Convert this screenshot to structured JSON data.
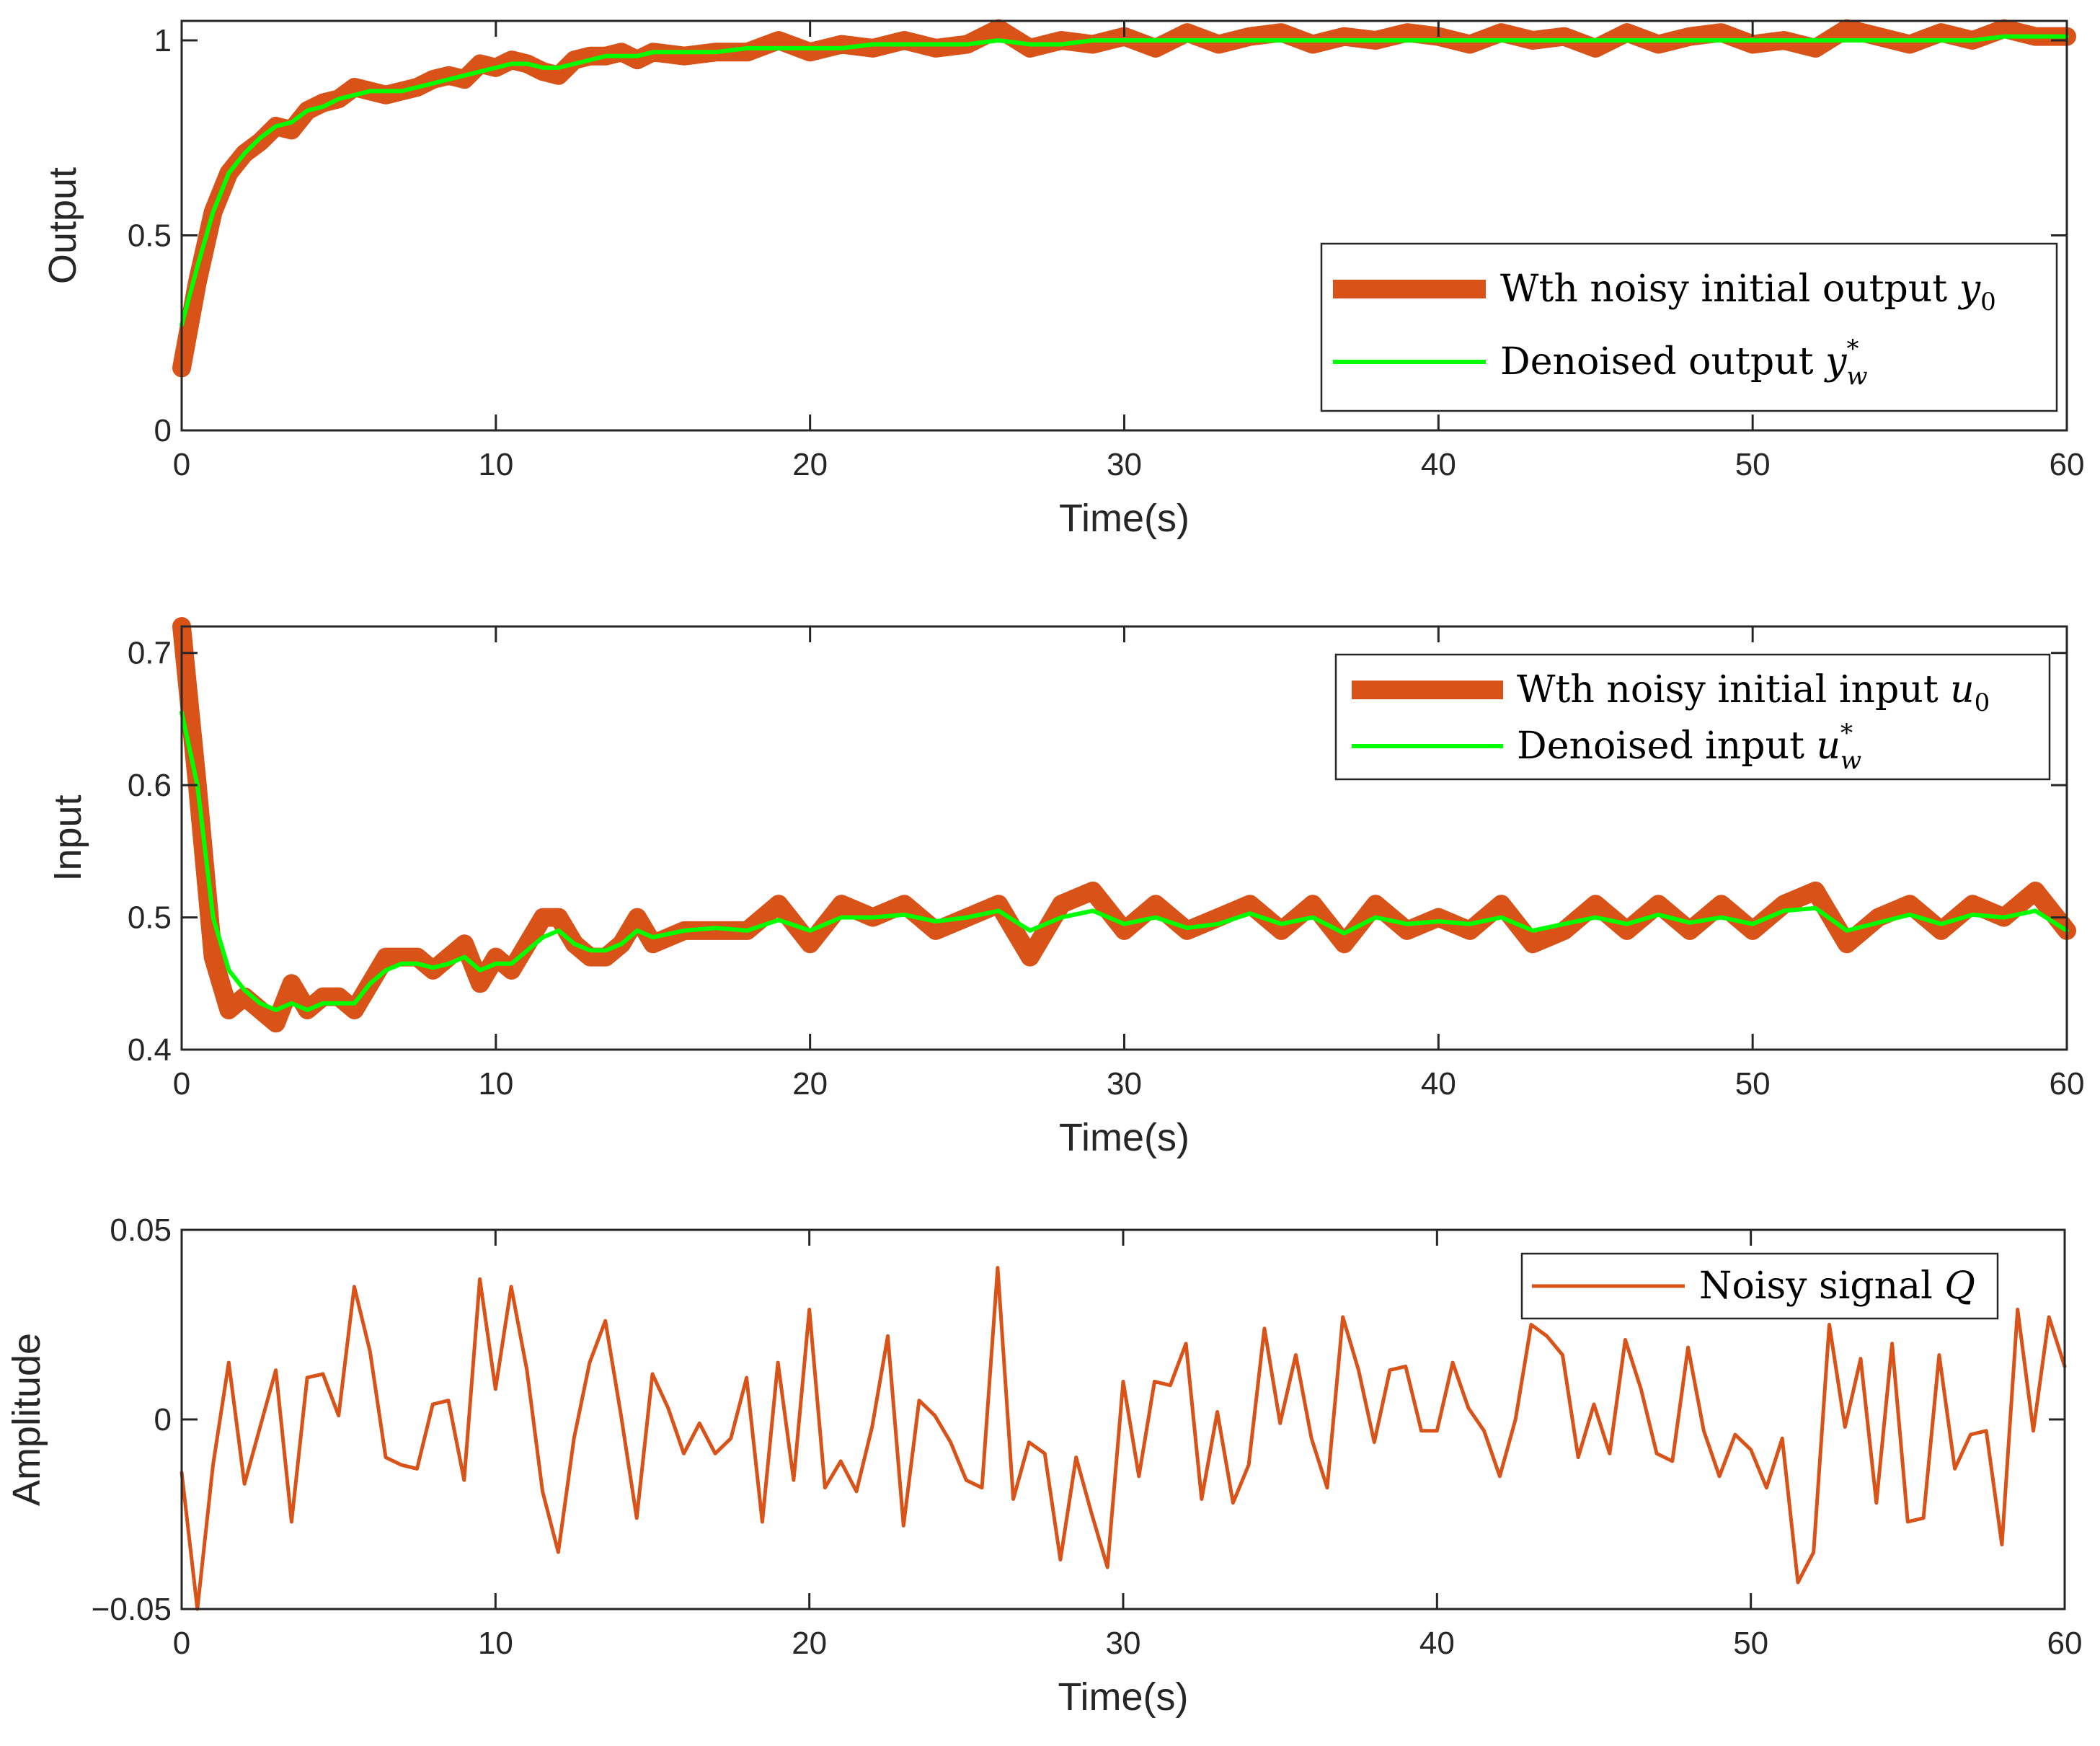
{
  "chart_data": [
    {
      "type": "line",
      "xlabel": "Time(s)",
      "ylabel": "Output",
      "xlim": [
        0,
        60
      ],
      "ylim": [
        0,
        1.05
      ],
      "xticks": [
        "0",
        "10",
        "20",
        "30",
        "40",
        "50",
        "60"
      ],
      "yticks": [
        "0",
        "0.5",
        "1"
      ],
      "legend_position": "bottom-right",
      "series": [
        {
          "name": "Wth noisy initial output",
          "legend_main": "Wth noisy initial output ",
          "legend_var": "y",
          "legend_sub": "0",
          "legend_sup": "",
          "color": "#D95319",
          "width": "thick",
          "x": [
            0,
            0.5,
            1,
            1.5,
            2,
            2.5,
            3,
            3.5,
            4,
            4.5,
            5,
            5.5,
            6,
            6.5,
            7,
            7.5,
            8,
            8.5,
            9,
            9.5,
            10,
            10.5,
            11,
            11.5,
            12,
            12.5,
            13,
            13.5,
            14,
            14.5,
            15,
            16,
            17,
            18,
            19,
            20,
            21,
            22,
            23,
            24,
            25,
            26,
            27,
            28,
            29,
            30,
            31,
            32,
            33,
            34,
            35,
            36,
            37,
            38,
            39,
            40,
            41,
            42,
            43,
            44,
            45,
            46,
            47,
            48,
            49,
            50,
            51,
            52,
            53,
            54,
            55,
            56,
            57,
            58,
            59,
            60
          ],
          "values": [
            0.16,
            0.38,
            0.56,
            0.66,
            0.71,
            0.74,
            0.78,
            0.77,
            0.82,
            0.84,
            0.85,
            0.88,
            0.87,
            0.86,
            0.87,
            0.88,
            0.9,
            0.91,
            0.9,
            0.94,
            0.93,
            0.95,
            0.94,
            0.92,
            0.91,
            0.95,
            0.96,
            0.96,
            0.97,
            0.95,
            0.97,
            0.96,
            0.97,
            0.97,
            1.0,
            0.97,
            0.99,
            0.98,
            1.0,
            0.98,
            0.99,
            1.03,
            0.98,
            1.0,
            0.99,
            1.01,
            0.98,
            1.02,
            0.99,
            1.01,
            1.02,
            0.99,
            1.01,
            1.0,
            1.02,
            1.01,
            0.99,
            1.02,
            1.0,
            1.01,
            0.98,
            1.02,
            0.99,
            1.01,
            1.02,
            0.99,
            1.0,
            0.98,
            1.03,
            1.01,
            0.99,
            1.02,
            1.0,
            1.03,
            1.01,
            1.01
          ]
        },
        {
          "name": "Denoised output",
          "legend_main": "Denoised output ",
          "legend_var": "y",
          "legend_sub": "w",
          "legend_sup": "*",
          "color": "#00FF00",
          "width": "thin",
          "x": [
            0,
            0.5,
            1,
            1.5,
            2,
            2.5,
            3,
            3.5,
            4,
            4.5,
            5,
            5.5,
            6,
            6.5,
            7,
            7.5,
            8,
            8.5,
            9,
            9.5,
            10,
            10.5,
            11,
            11.5,
            12,
            12.5,
            13,
            13.5,
            14,
            14.5,
            15,
            16,
            17,
            18,
            19,
            20,
            21,
            22,
            23,
            24,
            25,
            26,
            27,
            28,
            29,
            30,
            31,
            32,
            33,
            34,
            35,
            36,
            37,
            38,
            39,
            40,
            41,
            42,
            43,
            44,
            45,
            46,
            47,
            48,
            49,
            50,
            51,
            52,
            53,
            54,
            55,
            56,
            57,
            58,
            59,
            60
          ],
          "values": [
            0.27,
            0.42,
            0.56,
            0.66,
            0.71,
            0.75,
            0.78,
            0.79,
            0.82,
            0.83,
            0.85,
            0.86,
            0.87,
            0.87,
            0.87,
            0.88,
            0.89,
            0.9,
            0.91,
            0.92,
            0.93,
            0.94,
            0.94,
            0.93,
            0.93,
            0.94,
            0.95,
            0.96,
            0.96,
            0.96,
            0.97,
            0.97,
            0.97,
            0.98,
            0.98,
            0.98,
            0.98,
            0.99,
            0.99,
            0.99,
            0.99,
            1.0,
            0.99,
            0.99,
            1.0,
            1.0,
            1.0,
            1.0,
            1.0,
            1.0,
            1.0,
            1.0,
            1.0,
            1.0,
            1.0,
            1.0,
            1.0,
            1.0,
            1.0,
            1.0,
            1.0,
            1.0,
            1.0,
            1.0,
            1.0,
            1.0,
            1.0,
            1.0,
            1.0,
            1.0,
            1.0,
            1.0,
            1.0,
            1.01,
            1.01,
            1.01
          ]
        }
      ]
    },
    {
      "type": "line",
      "xlabel": "Time(s)",
      "ylabel": "Input",
      "xlim": [
        0,
        60
      ],
      "ylim": [
        0.4,
        0.72
      ],
      "xticks": [
        "0",
        "10",
        "20",
        "30",
        "40",
        "50",
        "60"
      ],
      "yticks": [
        "0.4",
        "0.5",
        "0.6",
        "0.7"
      ],
      "legend_position": "top-right",
      "series": [
        {
          "name": "Wth noisy initial input",
          "legend_main": "Wth noisy initial input ",
          "legend_var": "u",
          "legend_sub": "0",
          "legend_sup": "",
          "color": "#D95319",
          "width": "thick",
          "x": [
            0,
            0.5,
            1,
            1.5,
            2,
            2.5,
            3,
            3.5,
            4,
            4.5,
            5,
            5.5,
            6,
            6.5,
            7,
            7.5,
            8,
            8.5,
            9,
            9.5,
            10,
            10.5,
            11,
            11.5,
            12,
            12.5,
            13,
            13.5,
            14,
            14.5,
            15,
            16,
            17,
            18,
            19,
            20,
            21,
            22,
            23,
            24,
            25,
            26,
            27,
            28,
            29,
            30,
            31,
            32,
            33,
            34,
            35,
            36,
            37,
            38,
            39,
            40,
            41,
            42,
            43,
            44,
            45,
            46,
            47,
            48,
            49,
            50,
            51,
            52,
            53,
            54,
            55,
            56,
            57,
            58,
            59,
            60
          ],
          "values": [
            0.72,
            0.6,
            0.47,
            0.43,
            0.44,
            0.43,
            0.42,
            0.45,
            0.43,
            0.44,
            0.44,
            0.43,
            0.45,
            0.47,
            0.47,
            0.47,
            0.46,
            0.47,
            0.48,
            0.45,
            0.47,
            0.46,
            0.48,
            0.5,
            0.5,
            0.48,
            0.47,
            0.47,
            0.48,
            0.5,
            0.48,
            0.49,
            0.49,
            0.49,
            0.51,
            0.48,
            0.51,
            0.5,
            0.51,
            0.49,
            0.5,
            0.51,
            0.47,
            0.51,
            0.52,
            0.49,
            0.51,
            0.49,
            0.5,
            0.51,
            0.49,
            0.51,
            0.48,
            0.51,
            0.49,
            0.5,
            0.49,
            0.51,
            0.48,
            0.49,
            0.51,
            0.49,
            0.51,
            0.49,
            0.51,
            0.49,
            0.51,
            0.52,
            0.48,
            0.5,
            0.51,
            0.49,
            0.51,
            0.5,
            0.52,
            0.49
          ]
        },
        {
          "name": "Denoised input",
          "legend_main": "Denoised input ",
          "legend_var": "u",
          "legend_sub": "w",
          "legend_sup": "*",
          "color": "#00FF00",
          "width": "thin",
          "x": [
            0,
            0.5,
            1,
            1.5,
            2,
            2.5,
            3,
            3.5,
            4,
            4.5,
            5,
            5.5,
            6,
            6.5,
            7,
            7.5,
            8,
            8.5,
            9,
            9.5,
            10,
            10.5,
            11,
            11.5,
            12,
            12.5,
            13,
            13.5,
            14,
            14.5,
            15,
            16,
            17,
            18,
            19,
            20,
            21,
            22,
            23,
            24,
            25,
            26,
            27,
            28,
            29,
            30,
            31,
            32,
            33,
            34,
            35,
            36,
            37,
            38,
            39,
            40,
            41,
            42,
            43,
            44,
            45,
            46,
            47,
            48,
            49,
            50,
            51,
            52,
            53,
            54,
            55,
            56,
            57,
            58,
            59,
            60
          ],
          "values": [
            0.655,
            0.6,
            0.5,
            0.46,
            0.445,
            0.435,
            0.43,
            0.435,
            0.43,
            0.435,
            0.435,
            0.435,
            0.45,
            0.46,
            0.465,
            0.465,
            0.462,
            0.465,
            0.47,
            0.46,
            0.465,
            0.465,
            0.475,
            0.485,
            0.49,
            0.48,
            0.475,
            0.475,
            0.48,
            0.49,
            0.485,
            0.49,
            0.492,
            0.49,
            0.498,
            0.49,
            0.5,
            0.5,
            0.502,
            0.497,
            0.5,
            0.505,
            0.49,
            0.5,
            0.505,
            0.495,
            0.5,
            0.492,
            0.495,
            0.503,
            0.495,
            0.5,
            0.488,
            0.5,
            0.495,
            0.497,
            0.495,
            0.5,
            0.49,
            0.495,
            0.5,
            0.495,
            0.502,
            0.496,
            0.5,
            0.495,
            0.505,
            0.507,
            0.49,
            0.496,
            0.502,
            0.495,
            0.502,
            0.5,
            0.505,
            0.49
          ]
        }
      ]
    },
    {
      "type": "line",
      "xlabel": "Time(s)",
      "ylabel": "Amplitude",
      "xlim": [
        0,
        60
      ],
      "ylim": [
        -0.05,
        0.05
      ],
      "xticks": [
        "0",
        "10",
        "20",
        "30",
        "40",
        "50",
        "60"
      ],
      "yticks": [
        "−0.05",
        "0",
        "0.05"
      ],
      "legend_position": "top-right",
      "series": [
        {
          "name": "Noisy signal",
          "legend_main": "Noisy signal ",
          "legend_var": "Q",
          "legend_sub": "",
          "legend_sup": "",
          "color": "#D95319",
          "width": "normal",
          "x": [
            0,
            0.5,
            1,
            1.5,
            2,
            2.5,
            3,
            3.5,
            4,
            4.5,
            5,
            5.5,
            6,
            6.5,
            7,
            7.5,
            8,
            8.5,
            9,
            9.5,
            10,
            10.5,
            11,
            11.5,
            12,
            12.5,
            13,
            13.5,
            14,
            14.5,
            15,
            15.5,
            16,
            16.5,
            17,
            17.5,
            18,
            18.5,
            19,
            19.5,
            20,
            20.5,
            21,
            21.5,
            22,
            22.5,
            23,
            23.5,
            24,
            24.5,
            25,
            25.5,
            26,
            26.5,
            27,
            27.5,
            28,
            28.5,
            29,
            29.5,
            30,
            30.5,
            31,
            31.5,
            32,
            32.5,
            33,
            33.5,
            34,
            34.5,
            35,
            35.5,
            36,
            36.5,
            37,
            37.5,
            38,
            38.5,
            39,
            39.5,
            40,
            40.5,
            41,
            41.5,
            42,
            42.5,
            43,
            43.5,
            44,
            44.5,
            45,
            45.5,
            46,
            46.5,
            47,
            47.5,
            48,
            48.5,
            49,
            49.5,
            50,
            50.5,
            51,
            51.5,
            52,
            52.5,
            53,
            53.5,
            54,
            54.5,
            55,
            55.5,
            56,
            56.5,
            57,
            57.5,
            58,
            58.5,
            59,
            59.5,
            60
          ],
          "values": [
            -0.014,
            -0.05,
            -0.012,
            0.015,
            -0.017,
            -0.002,
            0.013,
            -0.027,
            0.011,
            0.012,
            0.001,
            0.035,
            0.018,
            -0.01,
            -0.012,
            -0.013,
            0.004,
            0.005,
            -0.016,
            0.037,
            0.008,
            0.035,
            0.013,
            -0.019,
            -0.035,
            -0.005,
            0.015,
            0.026,
            0.001,
            -0.026,
            0.012,
            0.003,
            -0.009,
            -0.001,
            -0.009,
            -0.005,
            0.011,
            -0.027,
            0.015,
            -0.016,
            0.029,
            -0.018,
            -0.011,
            -0.019,
            -0.002,
            0.022,
            -0.028,
            0.005,
            0.001,
            -0.006,
            -0.016,
            -0.018,
            0.04,
            -0.021,
            -0.006,
            -0.009,
            -0.037,
            -0.01,
            -0.025,
            -0.039,
            0.01,
            -0.015,
            0.01,
            0.009,
            0.02,
            -0.021,
            0.002,
            -0.022,
            -0.012,
            0.024,
            -0.001,
            0.017,
            -0.005,
            -0.018,
            0.027,
            0.013,
            -0.006,
            0.013,
            0.014,
            -0.003,
            -0.003,
            0.015,
            0.003,
            -0.003,
            -0.015,
            0.0,
            0.025,
            0.022,
            0.017,
            -0.01,
            0.004,
            -0.009,
            0.021,
            0.008,
            -0.009,
            -0.011,
            0.019,
            -0.003,
            -0.015,
            -0.004,
            -0.008,
            -0.018,
            -0.005,
            -0.043,
            -0.035,
            0.025,
            -0.002,
            0.016,
            -0.022,
            0.02,
            -0.027,
            -0.026,
            0.017,
            -0.013,
            -0.004,
            -0.003,
            -0.033,
            0.029,
            -0.003,
            0.027,
            0.014
          ]
        }
      ]
    }
  ]
}
